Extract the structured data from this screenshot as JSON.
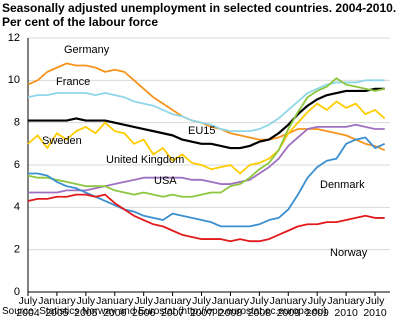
{
  "chart_data": {
    "type": "line",
    "title": "Seasonally adjusted unemployment in selected countries. 2004-2010.",
    "subtitle": "Per cent of the labour force",
    "source": "Source: Statistics Norway and Eurostat (http://epp.eurostat.ec.europa.eu)",
    "categories": [
      "July 2004",
      null,
      null,
      "January 2005",
      null,
      null,
      "July 2005",
      null,
      null,
      "January 2006",
      null,
      null,
      "July 2006",
      null,
      null,
      "January 2007",
      null,
      null,
      "July 2007",
      null,
      null,
      "January 2008",
      null,
      null,
      "July 2008",
      null,
      null,
      "January 2009",
      null,
      null,
      "July 2009",
      null,
      null,
      "January 2010",
      null,
      null,
      "July 2010",
      null
    ],
    "ylim": [
      0,
      12
    ],
    "yticks": [
      0,
      2,
      4,
      6,
      8,
      10,
      12
    ],
    "grid": true,
    "series": [
      {
        "name": "Germany",
        "color": "#f7941d",
        "values": [
          9.8,
          10.0,
          10.4,
          10.6,
          10.8,
          10.7,
          10.7,
          10.6,
          10.4,
          10.5,
          10.4,
          10.0,
          9.6,
          9.2,
          8.9,
          8.6,
          8.3,
          8.1,
          8.0,
          7.8,
          7.7,
          7.5,
          7.4,
          7.3,
          7.2,
          7.2,
          7.3,
          7.5,
          7.7,
          7.7,
          7.7,
          7.6,
          7.5,
          7.4,
          7.2,
          7.0,
          6.9,
          6.7
        ]
      },
      {
        "name": "France",
        "color": "#8fd6e8",
        "values": [
          9.2,
          9.3,
          9.3,
          9.4,
          9.4,
          9.4,
          9.4,
          9.3,
          9.4,
          9.3,
          9.2,
          9.0,
          8.9,
          8.8,
          8.6,
          8.4,
          8.3,
          8.1,
          8.0,
          7.9,
          7.7,
          7.6,
          7.6,
          7.6,
          7.7,
          7.9,
          8.2,
          8.6,
          9.0,
          9.4,
          9.6,
          9.8,
          9.9,
          9.9,
          9.9,
          10.0,
          10.0,
          10.0
        ]
      },
      {
        "name": "EU15",
        "color": "#000000",
        "values": [
          8.1,
          8.1,
          8.1,
          8.1,
          8.1,
          8.2,
          8.1,
          8.1,
          8.1,
          8.0,
          7.9,
          7.8,
          7.7,
          7.6,
          7.5,
          7.4,
          7.2,
          7.1,
          7.0,
          7.0,
          6.9,
          6.8,
          6.8,
          6.9,
          7.1,
          7.2,
          7.5,
          7.9,
          8.4,
          8.8,
          9.1,
          9.3,
          9.4,
          9.5,
          9.5,
          9.5,
          9.6,
          9.6
        ]
      },
      {
        "name": "Sweden",
        "color": "#ffcc00",
        "values": [
          7.0,
          7.4,
          6.8,
          7.5,
          7.2,
          7.6,
          7.8,
          7.5,
          8.0,
          7.6,
          7.5,
          7.0,
          7.2,
          6.5,
          6.8,
          6.2,
          6.5,
          6.1,
          6.0,
          5.8,
          5.9,
          6.0,
          5.6,
          6.0,
          6.1,
          6.3,
          6.7,
          7.5,
          8.0,
          8.5,
          8.9,
          8.6,
          9.0,
          8.7,
          8.9,
          8.4,
          8.6,
          8.2
        ]
      },
      {
        "name": "United Kingdom",
        "color": "#a070c0",
        "values": [
          4.7,
          4.7,
          4.7,
          4.7,
          4.8,
          4.8,
          4.8,
          4.9,
          5.0,
          5.1,
          5.2,
          5.3,
          5.4,
          5.4,
          5.4,
          5.4,
          5.4,
          5.3,
          5.3,
          5.2,
          5.1,
          5.1,
          5.2,
          5.3,
          5.6,
          5.9,
          6.3,
          6.9,
          7.3,
          7.7,
          7.8,
          7.8,
          7.8,
          7.8,
          7.9,
          7.8,
          7.7,
          7.7
        ]
      },
      {
        "name": "USA",
        "color": "#8dc63f",
        "values": [
          5.5,
          5.4,
          5.4,
          5.3,
          5.2,
          5.1,
          5.0,
          5.0,
          5.0,
          4.8,
          4.7,
          4.6,
          4.7,
          4.6,
          4.5,
          4.6,
          4.5,
          4.5,
          4.6,
          4.7,
          4.7,
          5.0,
          5.1,
          5.4,
          5.8,
          6.1,
          6.7,
          7.7,
          8.5,
          9.2,
          9.5,
          9.7,
          10.1,
          9.8,
          9.7,
          9.6,
          9.5,
          9.6
        ]
      },
      {
        "name": "Denmark",
        "color": "#3a8fd0",
        "values": [
          5.6,
          5.6,
          5.5,
          5.2,
          5.0,
          4.9,
          4.7,
          4.5,
          4.3,
          4.1,
          3.9,
          3.8,
          3.6,
          3.5,
          3.4,
          3.7,
          3.6,
          3.5,
          3.4,
          3.3,
          3.1,
          3.1,
          3.1,
          3.1,
          3.2,
          3.4,
          3.5,
          3.9,
          4.6,
          5.4,
          5.9,
          6.2,
          6.3,
          7.0,
          7.2,
          7.3,
          6.8,
          7.0
        ]
      },
      {
        "name": "Norway",
        "color": "#e31a1c",
        "values": [
          4.3,
          4.4,
          4.4,
          4.5,
          4.5,
          4.6,
          4.6,
          4.5,
          4.6,
          4.2,
          3.9,
          3.6,
          3.4,
          3.2,
          3.1,
          2.9,
          2.7,
          2.6,
          2.5,
          2.5,
          2.5,
          2.4,
          2.5,
          2.4,
          2.4,
          2.5,
          2.7,
          2.9,
          3.1,
          3.2,
          3.2,
          3.3,
          3.3,
          3.4,
          3.5,
          3.6,
          3.5,
          3.5
        ]
      }
    ]
  }
}
